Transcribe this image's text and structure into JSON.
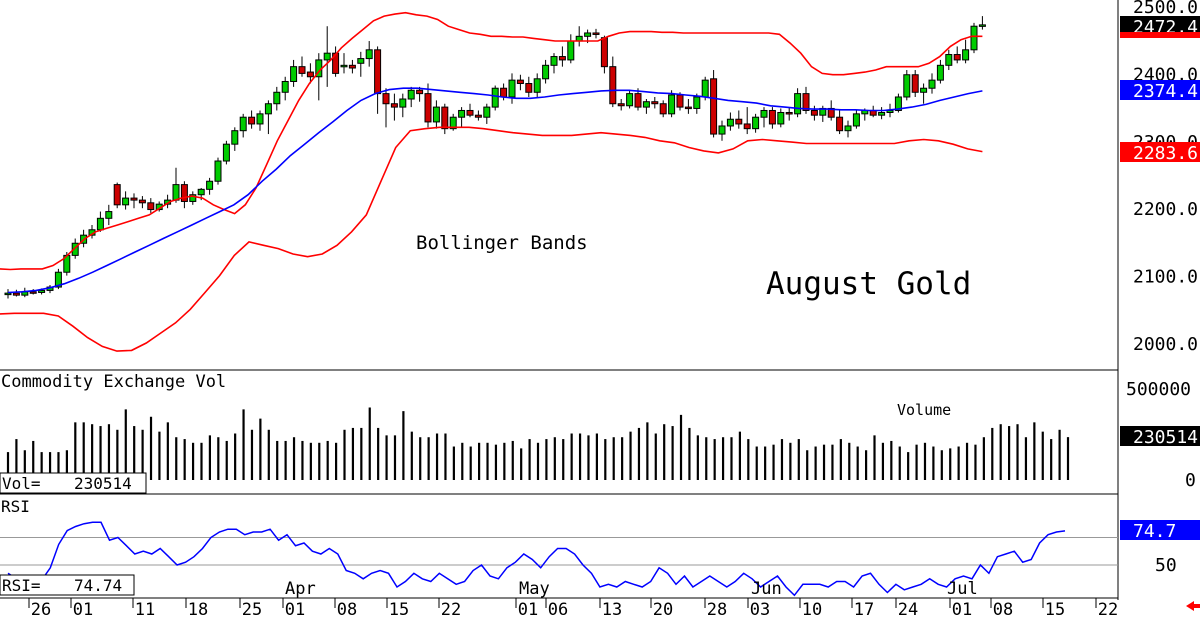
{
  "chart_data": [
    {
      "type": "candlestick",
      "title": "August Gold",
      "annotation": "Bollinger Bands",
      "y_ticks": [
        "2500.0",
        "2400.0",
        "2300.0",
        "2200.0",
        "2100.0",
        "2000.0"
      ],
      "ylim": [
        1960,
        2520
      ],
      "last_price": "2472.4",
      "upper_band_value": "2472.4",
      "middle_band_value": "2374.4",
      "lower_band_value": "2283.6",
      "x_tick_labels": [
        "26",
        "01",
        "11",
        "18",
        "25",
        "01",
        "08",
        "15",
        "22",
        "01",
        "06",
        "13",
        "20",
        "28",
        "03",
        "10",
        "17",
        "24",
        "01",
        "08",
        "15",
        "22"
      ],
      "month_labels": [
        "Apr",
        "May",
        "Jun",
        "Jul"
      ],
      "candles": [
        [
          2072,
          2080,
          2066,
          2074
        ],
        [
          2074,
          2079,
          2069,
          2071
        ],
        [
          2071,
          2082,
          2068,
          2076
        ],
        [
          2076,
          2080,
          2072,
          2075
        ],
        [
          2075,
          2081,
          2072,
          2078
        ],
        [
          2078,
          2086,
          2074,
          2083
        ],
        [
          2083,
          2110,
          2080,
          2105
        ],
        [
          2105,
          2135,
          2100,
          2130
        ],
        [
          2130,
          2155,
          2125,
          2148
        ],
        [
          2148,
          2168,
          2142,
          2160
        ],
        [
          2160,
          2175,
          2155,
          2168
        ],
        [
          2168,
          2195,
          2165,
          2185
        ],
        [
          2185,
          2205,
          2175,
          2195
        ],
        [
          2235,
          2238,
          2200,
          2205
        ],
        [
          2205,
          2225,
          2198,
          2215
        ],
        [
          2215,
          2222,
          2200,
          2212
        ],
        [
          2212,
          2218,
          2200,
          2208
        ],
        [
          2208,
          2215,
          2193,
          2198
        ],
        [
          2198,
          2210,
          2195,
          2206
        ],
        [
          2206,
          2220,
          2200,
          2212
        ],
        [
          2212,
          2260,
          2208,
          2235
        ],
        [
          2235,
          2240,
          2200,
          2210
        ],
        [
          2210,
          2225,
          2205,
          2220
        ],
        [
          2220,
          2230,
          2212,
          2228
        ],
        [
          2228,
          2245,
          2220,
          2240
        ],
        [
          2240,
          2275,
          2235,
          2270
        ],
        [
          2270,
          2300,
          2265,
          2295
        ],
        [
          2295,
          2320,
          2285,
          2315
        ],
        [
          2315,
          2340,
          2305,
          2335
        ],
        [
          2335,
          2345,
          2318,
          2325
        ],
        [
          2325,
          2345,
          2315,
          2340
        ],
        [
          2340,
          2360,
          2310,
          2355
        ],
        [
          2355,
          2380,
          2345,
          2372
        ],
        [
          2372,
          2395,
          2360,
          2388
        ],
        [
          2388,
          2420,
          2380,
          2410
        ],
        [
          2410,
          2425,
          2395,
          2400
        ],
        [
          2402,
          2415,
          2385,
          2395
        ],
        [
          2395,
          2430,
          2360,
          2420
        ],
        [
          2420,
          2470,
          2380,
          2430
        ],
        [
          2430,
          2440,
          2395,
          2400
        ],
        [
          2410,
          2430,
          2400,
          2412
        ],
        [
          2412,
          2420,
          2400,
          2408
        ],
        [
          2415,
          2432,
          2395,
          2422
        ],
        [
          2422,
          2448,
          2410,
          2435
        ],
        [
          2435,
          2440,
          2340,
          2370
        ],
        [
          2370,
          2378,
          2320,
          2355
        ],
        [
          2355,
          2370,
          2330,
          2350
        ],
        [
          2350,
          2370,
          2335,
          2362
        ],
        [
          2362,
          2380,
          2350,
          2375
        ],
        [
          2375,
          2380,
          2358,
          2370
        ],
        [
          2370,
          2385,
          2320,
          2328
        ],
        [
          2328,
          2360,
          2318,
          2350
        ],
        [
          2350,
          2355,
          2310,
          2318
        ],
        [
          2318,
          2340,
          2315,
          2335
        ],
        [
          2335,
          2350,
          2320,
          2345
        ],
        [
          2345,
          2355,
          2335,
          2338
        ],
        [
          2338,
          2345,
          2330,
          2335
        ],
        [
          2335,
          2355,
          2325,
          2350
        ],
        [
          2350,
          2382,
          2345,
          2378
        ],
        [
          2378,
          2385,
          2360,
          2365
        ],
        [
          2365,
          2400,
          2355,
          2390
        ],
        [
          2390,
          2398,
          2375,
          2385
        ],
        [
          2385,
          2395,
          2365,
          2372
        ],
        [
          2372,
          2400,
          2365,
          2392
        ],
        [
          2392,
          2420,
          2385,
          2412
        ],
        [
          2412,
          2430,
          2400,
          2425
        ],
        [
          2425,
          2440,
          2410,
          2420
        ],
        [
          2420,
          2458,
          2415,
          2448
        ],
        [
          2448,
          2470,
          2440,
          2455
        ],
        [
          2455,
          2465,
          2445,
          2460
        ],
        [
          2460,
          2466,
          2452,
          2458
        ],
        [
          2453,
          2456,
          2400,
          2410
        ],
        [
          2410,
          2425,
          2350,
          2355
        ],
        [
          2355,
          2362,
          2345,
          2352
        ],
        [
          2352,
          2375,
          2348,
          2370
        ],
        [
          2370,
          2378,
          2345,
          2350
        ],
        [
          2350,
          2362,
          2340,
          2358
        ],
        [
          2358,
          2365,
          2348,
          2355
        ],
        [
          2355,
          2360,
          2335,
          2340
        ],
        [
          2340,
          2375,
          2335,
          2368
        ],
        [
          2368,
          2372,
          2345,
          2350
        ],
        [
          2350,
          2362,
          2340,
          2348
        ],
        [
          2348,
          2370,
          2340,
          2365
        ],
        [
          2365,
          2395,
          2360,
          2390
        ],
        [
          2392,
          2405,
          2305,
          2310
        ],
        [
          2310,
          2330,
          2300,
          2322
        ],
        [
          2322,
          2342,
          2315,
          2332
        ],
        [
          2332,
          2345,
          2318,
          2325
        ],
        [
          2325,
          2350,
          2310,
          2318
        ],
        [
          2318,
          2340,
          2312,
          2335
        ],
        [
          2335,
          2350,
          2320,
          2345
        ],
        [
          2345,
          2350,
          2318,
          2325
        ],
        [
          2325,
          2348,
          2320,
          2342
        ],
        [
          2342,
          2350,
          2330,
          2340
        ],
        [
          2340,
          2378,
          2335,
          2370
        ],
        [
          2370,
          2380,
          2340,
          2345
        ],
        [
          2345,
          2352,
          2330,
          2338
        ],
        [
          2338,
          2352,
          2328,
          2348
        ],
        [
          2348,
          2360,
          2330,
          2335
        ],
        [
          2335,
          2345,
          2310,
          2315
        ],
        [
          2315,
          2330,
          2305,
          2322
        ],
        [
          2322,
          2345,
          2318,
          2340
        ],
        [
          2340,
          2348,
          2330,
          2345
        ],
        [
          2345,
          2352,
          2335,
          2338
        ],
        [
          2338,
          2350,
          2332,
          2342
        ],
        [
          2342,
          2355,
          2335,
          2345
        ],
        [
          2345,
          2370,
          2342,
          2365
        ],
        [
          2365,
          2405,
          2360,
          2398
        ],
        [
          2398,
          2405,
          2365,
          2372
        ],
        [
          2372,
          2385,
          2355,
          2378
        ],
        [
          2378,
          2400,
          2370,
          2390
        ],
        [
          2390,
          2420,
          2385,
          2412
        ],
        [
          2412,
          2435,
          2405,
          2428
        ],
        [
          2428,
          2440,
          2415,
          2420
        ],
        [
          2420,
          2450,
          2415,
          2435
        ],
        [
          2435,
          2475,
          2430,
          2470
        ],
        [
          2470,
          2485,
          2465,
          2472
        ]
      ],
      "upper_band": [
        2110,
        2109,
        2110,
        2110,
        2110,
        2115,
        2125,
        2140,
        2155,
        2165,
        2170,
        2175,
        2180,
        2185,
        2190,
        2200,
        2210,
        2215,
        2218,
        2215,
        2205,
        2198,
        2192,
        2205,
        2230,
        2265,
        2300,
        2330,
        2360,
        2385,
        2405,
        2420,
        2438,
        2452,
        2465,
        2478,
        2485,
        2488,
        2490,
        2487,
        2485,
        2480,
        2470,
        2465,
        2460,
        2458,
        2455,
        2455,
        2454,
        2454,
        2452,
        2450,
        2448,
        2448,
        2448,
        2448,
        2448,
        2455,
        2460,
        2462,
        2462,
        2462,
        2461,
        2461,
        2460,
        2460,
        2460,
        2460,
        2460,
        2460,
        2460,
        2460,
        2460,
        2458,
        2445,
        2430,
        2410,
        2400,
        2398,
        2398,
        2400,
        2402,
        2405,
        2410,
        2410,
        2410,
        2410,
        2415,
        2425,
        2440,
        2450,
        2455,
        2455
      ],
      "middle_band": [
        2075,
        2076,
        2078,
        2082,
        2088,
        2096,
        2105,
        2115,
        2125,
        2135,
        2145,
        2155,
        2165,
        2175,
        2185,
        2195,
        2205,
        2220,
        2240,
        2258,
        2278,
        2295,
        2312,
        2328,
        2345,
        2360,
        2370,
        2376,
        2378,
        2378,
        2376,
        2374,
        2372,
        2370,
        2368,
        2365,
        2363,
        2363,
        2365,
        2368,
        2370,
        2372,
        2374,
        2375,
        2375,
        2373,
        2371,
        2370,
        2368,
        2366,
        2363,
        2360,
        2358,
        2356,
        2352,
        2350,
        2348,
        2347,
        2347,
        2346,
        2346,
        2345,
        2345,
        2347,
        2350,
        2354,
        2360,
        2365,
        2370,
        2374
      ],
      "lower_band": [
        2043,
        2044,
        2044,
        2044,
        2040,
        2025,
        2008,
        1995,
        1988,
        1989,
        2000,
        2015,
        2030,
        2050,
        2075,
        2100,
        2130,
        2150,
        2145,
        2140,
        2132,
        2128,
        2132,
        2145,
        2165,
        2190,
        2240,
        2290,
        2315,
        2318,
        2320,
        2320,
        2320,
        2318,
        2315,
        2312,
        2310,
        2308,
        2308,
        2308,
        2310,
        2312,
        2310,
        2308,
        2305,
        2300,
        2297,
        2290,
        2285,
        2282,
        2288,
        2300,
        2302,
        2300,
        2298,
        2296,
        2296,
        2296,
        2296,
        2296,
        2296,
        2296,
        2300,
        2302,
        2300,
        2295,
        2288,
        2284
      ]
    },
    {
      "type": "bar",
      "title": "Commodity Exchange Vol",
      "series_label": "Volume",
      "y_ticks": [
        "500000",
        "0"
      ],
      "ylim": [
        0,
        550000
      ],
      "last_value": "230514",
      "readout_label": "Vol=",
      "readout_value": "230514",
      "values": [
        150000,
        220000,
        160000,
        210000,
        150000,
        150000,
        150000,
        160000,
        310000,
        310000,
        300000,
        290000,
        300000,
        270000,
        380000,
        290000,
        270000,
        340000,
        260000,
        310000,
        230000,
        220000,
        200000,
        200000,
        240000,
        230000,
        210000,
        250000,
        380000,
        270000,
        330000,
        270000,
        210000,
        210000,
        230000,
        210000,
        200000,
        200000,
        210000,
        200000,
        270000,
        280000,
        280000,
        390000,
        280000,
        240000,
        240000,
        370000,
        260000,
        230000,
        230000,
        250000,
        250000,
        180000,
        200000,
        180000,
        200000,
        200000,
        190000,
        200000,
        210000,
        170000,
        220000,
        200000,
        220000,
        230000,
        220000,
        250000,
        250000,
        240000,
        250000,
        220000,
        230000,
        230000,
        260000,
        280000,
        310000,
        250000,
        300000,
        290000,
        350000,
        280000,
        240000,
        230000,
        220000,
        230000,
        230000,
        260000,
        220000,
        180000,
        180000,
        190000,
        220000,
        200000,
        220000,
        160000,
        180000,
        190000,
        190000,
        220000,
        200000,
        180000,
        160000,
        240000,
        200000,
        210000,
        180000,
        150000,
        190000,
        200000,
        180000,
        160000,
        170000,
        180000,
        200000,
        190000,
        230000,
        280000,
        300000,
        290000,
        300000,
        230000,
        310000,
        260000,
        220000,
        270000,
        230514
      ]
    },
    {
      "type": "line",
      "title": "RSI",
      "readout_label": "RSI=",
      "readout_value": "74.74",
      "last_value": "74.7",
      "y_ticks": [
        "50"
      ],
      "ylim": [
        20,
        100
      ],
      "values": [
        44,
        40,
        36,
        36,
        39,
        48,
        65,
        75,
        78,
        80,
        81,
        81,
        68,
        70,
        64,
        58,
        60,
        58,
        62,
        56,
        50,
        52,
        56,
        62,
        70,
        74,
        76,
        76,
        72,
        74,
        74,
        76,
        68,
        72,
        64,
        66,
        60,
        58,
        62,
        58,
        46,
        44,
        40,
        44,
        46,
        44,
        34,
        38,
        44,
        40,
        38,
        44,
        40,
        36,
        38,
        46,
        50,
        42,
        40,
        48,
        52,
        58,
        54,
        48,
        56,
        62,
        62,
        58,
        50,
        44,
        34,
        36,
        34,
        38,
        36,
        34,
        38,
        48,
        44,
        36,
        42,
        34,
        38,
        42,
        38,
        34,
        38,
        44,
        40,
        34,
        38,
        42,
        34,
        28,
        36,
        36,
        36,
        34,
        38,
        38,
        34,
        42,
        44,
        36,
        30,
        36,
        32,
        34,
        36,
        40,
        36,
        34,
        40,
        42,
        40,
        50,
        44,
        56,
        58,
        60,
        52,
        54,
        66,
        72,
        74,
        74.74
      ]
    }
  ],
  "colors": {
    "up_candle": "#00cc00",
    "down_candle": "#cc0000",
    "bollinger_outer": "#ff0000",
    "bollinger_middle": "#0000ff",
    "rsi_line": "#0000ff",
    "price_tag_upper": "#ff0000",
    "price_tag_middle": "#0000ff",
    "price_tag_lower": "#ff0000",
    "volume_bar": "#000000"
  }
}
